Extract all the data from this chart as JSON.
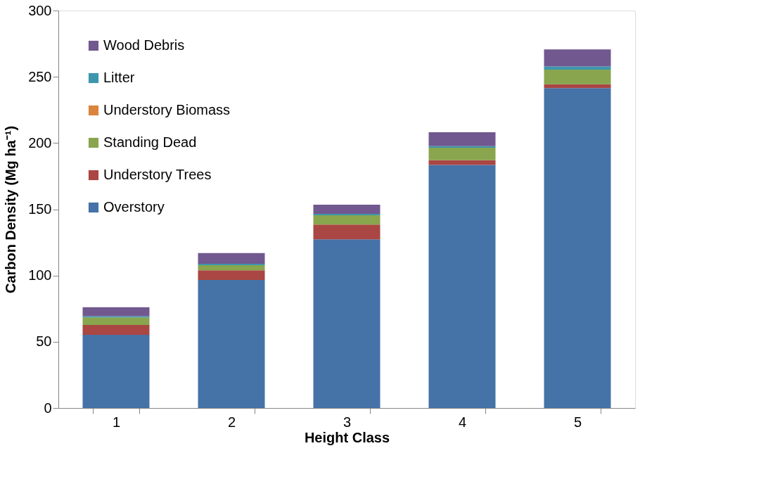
{
  "chart_data": {
    "type": "bar",
    "stacked": true,
    "xlabel": "Height Class",
    "ylabel": "Carbon Density (Mg ha⁻¹)",
    "categories": [
      "1",
      "2",
      "3",
      "4",
      "5"
    ],
    "series": [
      {
        "name": "Overstory",
        "color": "#4572a7",
        "values": [
          55.2,
          96.7,
          127.3,
          183.4,
          241.4
        ]
      },
      {
        "name": "Understory Trees",
        "color": "#aa4643",
        "values": [
          7.4,
          7.2,
          11.2,
          3.7,
          3.0
        ]
      },
      {
        "name": "Standing Dead",
        "color": "#89a54e",
        "values": [
          5.8,
          3.9,
          7.0,
          9.4,
          11.0
        ]
      },
      {
        "name": "Understory Biomass",
        "color": "#db843d",
        "values": [
          null,
          null,
          null,
          null,
          null
        ]
      },
      {
        "name": "Litter",
        "color": "#3d96ae",
        "values": [
          0.9,
          1.0,
          1.0,
          1.2,
          2.4
        ]
      },
      {
        "name": "Wood Debris",
        "color": "#71588f",
        "values": [
          6.7,
          8.1,
          7.0,
          10.5,
          12.9
        ]
      }
    ],
    "ylim": [
      0,
      300
    ],
    "yticks": [
      0,
      50,
      100,
      150,
      200,
      250,
      300
    ],
    "grid": false,
    "legend": "top left"
  }
}
